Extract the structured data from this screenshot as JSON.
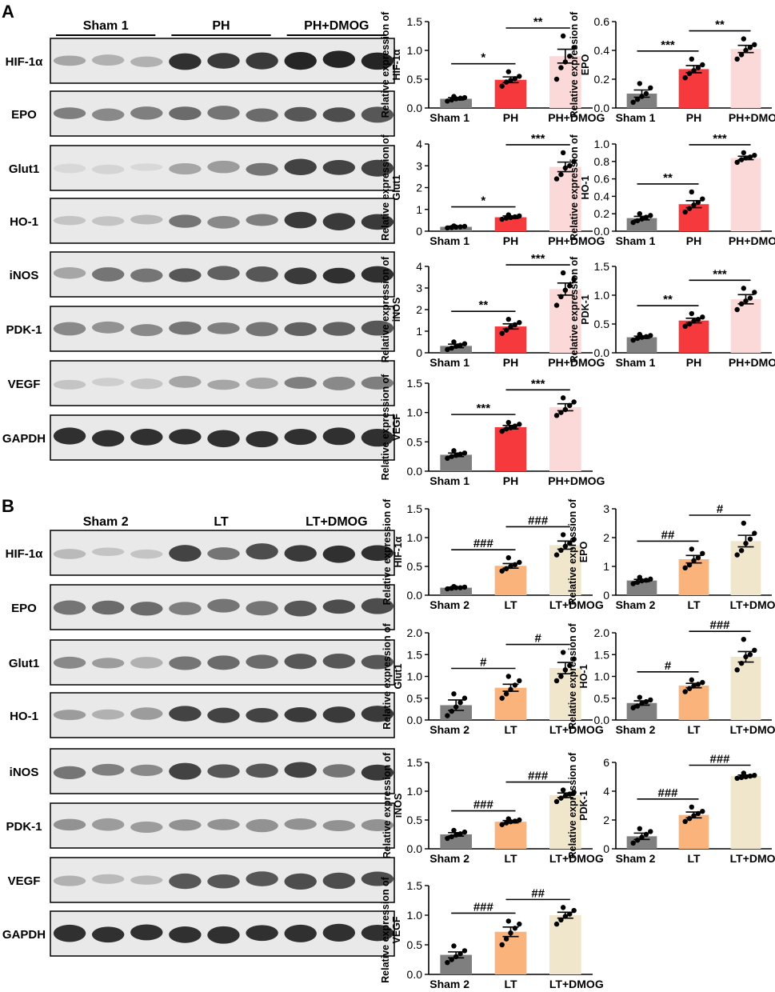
{
  "panels": [
    {
      "letter": "A",
      "groups": [
        "Sham 1",
        "PH",
        "PH+DMOG"
      ],
      "colors": [
        "#7f7f7f",
        "#f6393c",
        "#fbd9d9"
      ],
      "bands": [
        "HIF-1α",
        "EPO",
        "Glut1",
        "HO-1",
        "iNOS",
        "PDK-1",
        "VEGF",
        "GAPDH"
      ]
    },
    {
      "letter": "B",
      "groups": [
        "Sham 2",
        "LT",
        "LT+DMOG"
      ],
      "colors": [
        "#7f7f7f",
        "#f9b37b",
        "#efe6cc"
      ],
      "bands": [
        "HIF-1α",
        "EPO",
        "Glut1",
        "HO-1",
        "iNOS",
        "PDK-1",
        "VEGF",
        "GAPDH"
      ]
    }
  ],
  "ylabel_prefix": "Relative expression of",
  "chart_data": [
    {
      "type": "bar",
      "panel": "A",
      "title": "",
      "ylabel": "Relative expression of HIF-1α",
      "categories": [
        "Sham 1",
        "PH",
        "PH+DMOG"
      ],
      "values": [
        0.16,
        0.49,
        0.9
      ],
      "errors": [
        0.02,
        0.05,
        0.12
      ],
      "points": [
        [
          0.12,
          0.14,
          0.16,
          0.17,
          0.18,
          0.2
        ],
        [
          0.38,
          0.45,
          0.48,
          0.51,
          0.55,
          0.63
        ],
        [
          0.5,
          0.7,
          0.8,
          0.9,
          1.05,
          1.25
        ]
      ],
      "ylim": [
        0,
        1.5
      ],
      "yticks": [
        0.0,
        0.5,
        1.0,
        1.5
      ],
      "sig": [
        "*",
        "**"
      ]
    },
    {
      "type": "bar",
      "panel": "A",
      "title": "",
      "ylabel": "Relative expression of EPO",
      "categories": [
        "Sham 1",
        "PH",
        "PH+DMOG"
      ],
      "values": [
        0.1,
        0.27,
        0.41
      ],
      "errors": [
        0.025,
        0.025,
        0.025
      ],
      "points": [
        [
          0.04,
          0.06,
          0.08,
          0.1,
          0.14,
          0.17
        ],
        [
          0.21,
          0.24,
          0.26,
          0.28,
          0.3,
          0.34
        ],
        [
          0.34,
          0.37,
          0.4,
          0.42,
          0.44,
          0.48
        ]
      ],
      "ylim": [
        0,
        0.6
      ],
      "yticks": [
        0.0,
        0.2,
        0.4,
        0.6
      ],
      "sig": [
        "***",
        "**"
      ]
    },
    {
      "type": "bar",
      "panel": "A",
      "title": "",
      "ylabel": "Relative expression of Glut1",
      "categories": [
        "Sham 1",
        "PH",
        "PH+DMOG"
      ],
      "values": [
        0.2,
        0.64,
        2.95
      ],
      "errors": [
        0.03,
        0.06,
        0.22
      ],
      "points": [
        [
          0.15,
          0.17,
          0.19,
          0.2,
          0.22,
          0.24
        ],
        [
          0.55,
          0.6,
          0.63,
          0.66,
          0.7,
          0.75
        ],
        [
          2.4,
          2.6,
          2.9,
          3.0,
          3.2,
          3.6
        ]
      ],
      "ylim": [
        0,
        4
      ],
      "yticks": [
        0,
        1,
        2,
        3,
        4
      ],
      "sig": [
        "*",
        "***"
      ]
    },
    {
      "type": "bar",
      "panel": "A",
      "title": "",
      "ylabel": "Relative expression of HO-1",
      "categories": [
        "Sham 1",
        "PH",
        "PH+DMOG"
      ],
      "values": [
        0.15,
        0.31,
        0.84
      ],
      "errors": [
        0.02,
        0.04,
        0.02
      ],
      "points": [
        [
          0.1,
          0.12,
          0.14,
          0.16,
          0.18,
          0.2
        ],
        [
          0.22,
          0.26,
          0.3,
          0.33,
          0.37,
          0.45
        ],
        [
          0.79,
          0.82,
          0.84,
          0.85,
          0.87,
          0.9
        ]
      ],
      "ylim": [
        0,
        1.0
      ],
      "yticks": [
        0.0,
        0.2,
        0.4,
        0.6,
        0.8,
        1.0
      ],
      "sig": [
        "**",
        "***"
      ]
    },
    {
      "type": "bar",
      "panel": "A",
      "title": "",
      "ylabel": "Relative expression of iNOS",
      "categories": [
        "Sham 1",
        "PH",
        "PH+DMOG"
      ],
      "values": [
        0.32,
        1.22,
        2.95
      ],
      "errors": [
        0.08,
        0.12,
        0.28
      ],
      "points": [
        [
          0.15,
          0.22,
          0.3,
          0.35,
          0.42,
          0.5
        ],
        [
          0.9,
          1.05,
          1.2,
          1.3,
          1.4,
          1.55
        ],
        [
          2.2,
          2.6,
          2.9,
          3.1,
          3.4,
          3.7
        ]
      ],
      "ylim": [
        0,
        4
      ],
      "yticks": [
        0,
        1,
        2,
        3,
        4
      ],
      "sig": [
        "**",
        "***"
      ]
    },
    {
      "type": "bar",
      "panel": "A",
      "title": "",
      "ylabel": "Relative expression of PDK-1",
      "categories": [
        "Sham 1",
        "PH",
        "PH+DMOG"
      ],
      "values": [
        0.27,
        0.56,
        0.93
      ],
      "errors": [
        0.02,
        0.04,
        0.08
      ],
      "points": [
        [
          0.22,
          0.25,
          0.27,
          0.28,
          0.3,
          0.32
        ],
        [
          0.46,
          0.5,
          0.55,
          0.58,
          0.62,
          0.68
        ],
        [
          0.75,
          0.85,
          0.9,
          0.95,
          1.05,
          1.12
        ]
      ],
      "ylim": [
        0,
        1.5
      ],
      "yticks": [
        0.0,
        0.5,
        1.0,
        1.5
      ],
      "sig": [
        "**",
        "***"
      ]
    },
    {
      "type": "bar",
      "panel": "A",
      "title": "",
      "ylabel": "Relative expression of VEGF",
      "categories": [
        "Sham 1",
        "PH",
        "PH+DMOG"
      ],
      "values": [
        0.28,
        0.75,
        1.09
      ],
      "errors": [
        0.03,
        0.03,
        0.06
      ],
      "points": [
        [
          0.22,
          0.25,
          0.27,
          0.29,
          0.31,
          0.35
        ],
        [
          0.68,
          0.72,
          0.74,
          0.77,
          0.8,
          0.83
        ],
        [
          0.95,
          1.0,
          1.05,
          1.12,
          1.18,
          1.25
        ]
      ],
      "ylim": [
        0,
        1.5
      ],
      "yticks": [
        0.0,
        0.5,
        1.0,
        1.5
      ],
      "sig": [
        "***",
        "***"
      ]
    },
    {
      "type": "bar",
      "panel": "B",
      "title": "",
      "ylabel": "Relative expression of HIF-1α",
      "categories": [
        "Sham 2",
        "LT",
        "LT+DMOG"
      ],
      "values": [
        0.13,
        0.51,
        0.87
      ],
      "errors": [
        0.01,
        0.04,
        0.07
      ],
      "points": [
        [
          0.11,
          0.12,
          0.13,
          0.13,
          0.14,
          0.15
        ],
        [
          0.42,
          0.46,
          0.5,
          0.53,
          0.57,
          0.65
        ],
        [
          0.7,
          0.78,
          0.85,
          0.9,
          0.97,
          1.05
        ]
      ],
      "ylim": [
        0,
        1.5
      ],
      "yticks": [
        0.0,
        0.5,
        1.0,
        1.5
      ],
      "sig": [
        "###",
        "###"
      ]
    },
    {
      "type": "bar",
      "panel": "B",
      "title": "",
      "ylabel": "Relative expression of EPO",
      "categories": [
        "Sham 2",
        "LT",
        "LT+DMOG"
      ],
      "values": [
        0.51,
        1.25,
        1.88
      ],
      "errors": [
        0.04,
        0.13,
        0.2
      ],
      "points": [
        [
          0.4,
          0.45,
          0.5,
          0.52,
          0.56,
          0.62
        ],
        [
          0.95,
          1.05,
          1.2,
          1.3,
          1.45,
          1.6
        ],
        [
          1.4,
          1.55,
          1.8,
          1.95,
          2.15,
          2.5
        ]
      ],
      "ylim": [
        0,
        3
      ],
      "yticks": [
        0,
        1,
        2,
        3
      ],
      "sig": [
        "##",
        "#"
      ]
    },
    {
      "type": "bar",
      "panel": "B",
      "title": "",
      "ylabel": "Relative expression of Glut1",
      "categories": [
        "Sham 2",
        "LT",
        "LT+DMOG"
      ],
      "values": [
        0.34,
        0.74,
        1.19
      ],
      "errors": [
        0.12,
        0.08,
        0.13
      ],
      "points": [
        [
          0.1,
          0.2,
          0.3,
          0.4,
          0.5,
          0.6
        ],
        [
          0.5,
          0.6,
          0.7,
          0.8,
          0.9,
          1.0
        ],
        [
          0.9,
          1.0,
          1.15,
          1.25,
          1.4,
          1.55
        ]
      ],
      "ylim": [
        0,
        2.0
      ],
      "yticks": [
        0.0,
        0.5,
        1.0,
        1.5,
        2.0
      ],
      "sig": [
        "#",
        "#"
      ]
    },
    {
      "type": "bar",
      "panel": "B",
      "title": "",
      "ylabel": "Relative expression of HO-1",
      "categories": [
        "Sham 2",
        "LT",
        "LT+DMOG"
      ],
      "values": [
        0.39,
        0.79,
        1.45
      ],
      "errors": [
        0.05,
        0.05,
        0.12
      ],
      "points": [
        [
          0.28,
          0.32,
          0.38,
          0.42,
          0.46,
          0.52
        ],
        [
          0.65,
          0.72,
          0.78,
          0.82,
          0.86,
          0.92
        ],
        [
          1.15,
          1.3,
          1.45,
          1.5,
          1.6,
          1.85
        ]
      ],
      "ylim": [
        0,
        2.0
      ],
      "yticks": [
        0.0,
        0.5,
        1.0,
        1.5,
        2.0
      ],
      "sig": [
        "#",
        "###"
      ]
    },
    {
      "type": "bar",
      "panel": "B",
      "title": "",
      "ylabel": "Relative expression of iNOS",
      "categories": [
        "Sham 2",
        "LT",
        "LT+DMOG"
      ],
      "values": [
        0.25,
        0.47,
        0.93
      ],
      "errors": [
        0.03,
        0.02,
        0.04
      ],
      "points": [
        [
          0.18,
          0.21,
          0.24,
          0.26,
          0.29,
          0.32
        ],
        [
          0.42,
          0.45,
          0.47,
          0.48,
          0.5,
          0.52
        ],
        [
          0.82,
          0.88,
          0.92,
          0.95,
          0.98,
          1.02
        ]
      ],
      "ylim": [
        0,
        1.5
      ],
      "yticks": [
        0.0,
        0.5,
        1.0,
        1.5
      ],
      "sig": [
        "###",
        "###"
      ]
    },
    {
      "type": "bar",
      "panel": "B",
      "title": "",
      "ylabel": "Relative expression of PDK-1",
      "categories": [
        "Sham 2",
        "LT",
        "LT+DMOG"
      ],
      "values": [
        0.87,
        2.35,
        5.05
      ],
      "errors": [
        0.22,
        0.2,
        0.07
      ],
      "points": [
        [
          0.4,
          0.6,
          0.8,
          1.0,
          1.2,
          1.4
        ],
        [
          1.9,
          2.1,
          2.3,
          2.45,
          2.6,
          2.9
        ],
        [
          4.9,
          4.95,
          5.0,
          5.05,
          5.1,
          5.25
        ]
      ],
      "ylim": [
        0,
        6
      ],
      "yticks": [
        0,
        2,
        4,
        6
      ],
      "sig": [
        "###",
        "###"
      ]
    },
    {
      "type": "bar",
      "panel": "B",
      "title": "",
      "ylabel": "Relative expression of VEGF",
      "categories": [
        "Sham 2",
        "LT",
        "LT+DMOG"
      ],
      "values": [
        0.33,
        0.72,
        1.0
      ],
      "errors": [
        0.05,
        0.08,
        0.05
      ],
      "points": [
        [
          0.2,
          0.25,
          0.3,
          0.35,
          0.4,
          0.48
        ],
        [
          0.5,
          0.6,
          0.7,
          0.78,
          0.85,
          0.9
        ],
        [
          0.85,
          0.92,
          0.98,
          1.02,
          1.08,
          1.13
        ]
      ],
      "ylim": [
        0,
        1.5
      ],
      "yticks": [
        0.0,
        0.5,
        1.0,
        1.5
      ],
      "sig": [
        "###",
        "##"
      ]
    }
  ]
}
